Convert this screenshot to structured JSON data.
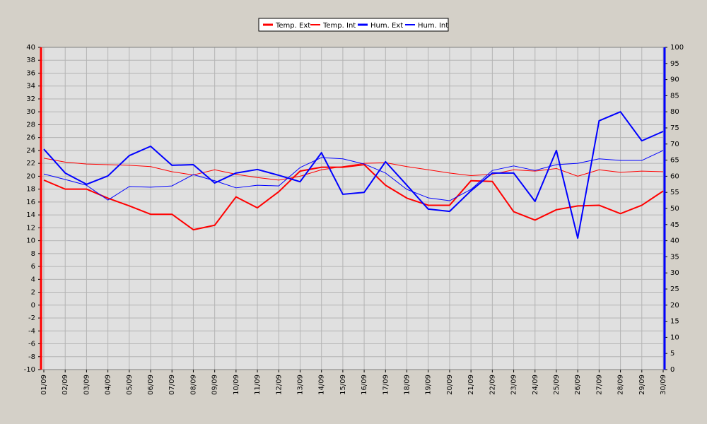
{
  "chart_data": {
    "type": "line",
    "categories": [
      "01/09",
      "02/09",
      "03/09",
      "04/09",
      "05/09",
      "06/09",
      "07/09",
      "08/09",
      "09/09",
      "10/09",
      "11/09",
      "12/09",
      "13/09",
      "14/09",
      "15/09",
      "16/09",
      "17/09",
      "18/09",
      "19/09",
      "20/09",
      "21/09",
      "22/09",
      "23/09",
      "24/09",
      "25/09",
      "26/09",
      "27/09",
      "28/09",
      "29/09",
      "30/09"
    ],
    "series": [
      {
        "name": "Temp. Ext",
        "color": "#ff0000",
        "line_width": 2,
        "values": [
          19.4,
          18.0,
          18.0,
          16.6,
          15.4,
          14.1,
          14.1,
          11.7,
          12.4,
          16.8,
          15.1,
          17.6,
          20.8,
          21.4,
          21.4,
          21.8,
          18.6,
          16.6,
          15.5,
          15.5,
          19.3,
          19.2,
          14.5,
          13.2,
          14.8,
          15.4,
          15.5,
          14.2,
          15.5,
          17.7
        ]
      },
      {
        "name": "Temp. Int",
        "color": "#ff0000",
        "line_width": 1,
        "values": [
          22.8,
          22.2,
          21.9,
          21.8,
          21.7,
          21.5,
          20.7,
          20.2,
          21.0,
          20.3,
          19.8,
          19.4,
          20.0,
          21.0,
          21.5,
          22.0,
          22.1,
          21.5,
          21.0,
          20.5,
          20.1,
          20.3,
          21.0,
          20.8,
          21.2,
          20.0,
          21.0,
          20.6,
          20.8,
          20.7
        ]
      },
      {
        "name": "Hum. Ext",
        "color": "#0000ff",
        "line_width": 2,
        "axis": "y2",
        "values": [
          68.4,
          61,
          57.5,
          60.1,
          66.4,
          69.3,
          63.4,
          63.6,
          57.9,
          61,
          62.1,
          60.3,
          58.3,
          67.3,
          54.4,
          55,
          64.5,
          57.2,
          49.8,
          49.1,
          55.5,
          61,
          61,
          52.2,
          68,
          40.8,
          77.2,
          80,
          71,
          73.9
        ]
      },
      {
        "name": "Hum. Int",
        "color": "#0000ff",
        "line_width": 1,
        "axis": "y2",
        "values": [
          60.7,
          59,
          57.2,
          52.6,
          56.8,
          56.6,
          57,
          60.5,
          58.6,
          56.4,
          57.2,
          57,
          62.7,
          65.8,
          65.4,
          63.8,
          61,
          55.9,
          53.3,
          52.4,
          55.9,
          61.8,
          63.2,
          61.8,
          63.6,
          64,
          65.4,
          64.9,
          64.9,
          68
        ]
      }
    ],
    "ylim": [
      -10,
      40
    ],
    "yticks": [
      -10,
      -8,
      -6,
      -4,
      -2,
      0,
      2,
      4,
      6,
      8,
      10,
      12,
      14,
      16,
      18,
      20,
      22,
      24,
      26,
      28,
      30,
      32,
      34,
      36,
      38,
      40
    ],
    "y2lim": [
      0,
      100
    ],
    "y2ticks": [
      0,
      5,
      10,
      15,
      20,
      25,
      30,
      35,
      40,
      45,
      50,
      55,
      60,
      65,
      70,
      75,
      80,
      85,
      90,
      95,
      100
    ],
    "yaxis_color": "#ff0000",
    "y2axis_color": "#0000ff",
    "grid": true,
    "legend": "top"
  }
}
